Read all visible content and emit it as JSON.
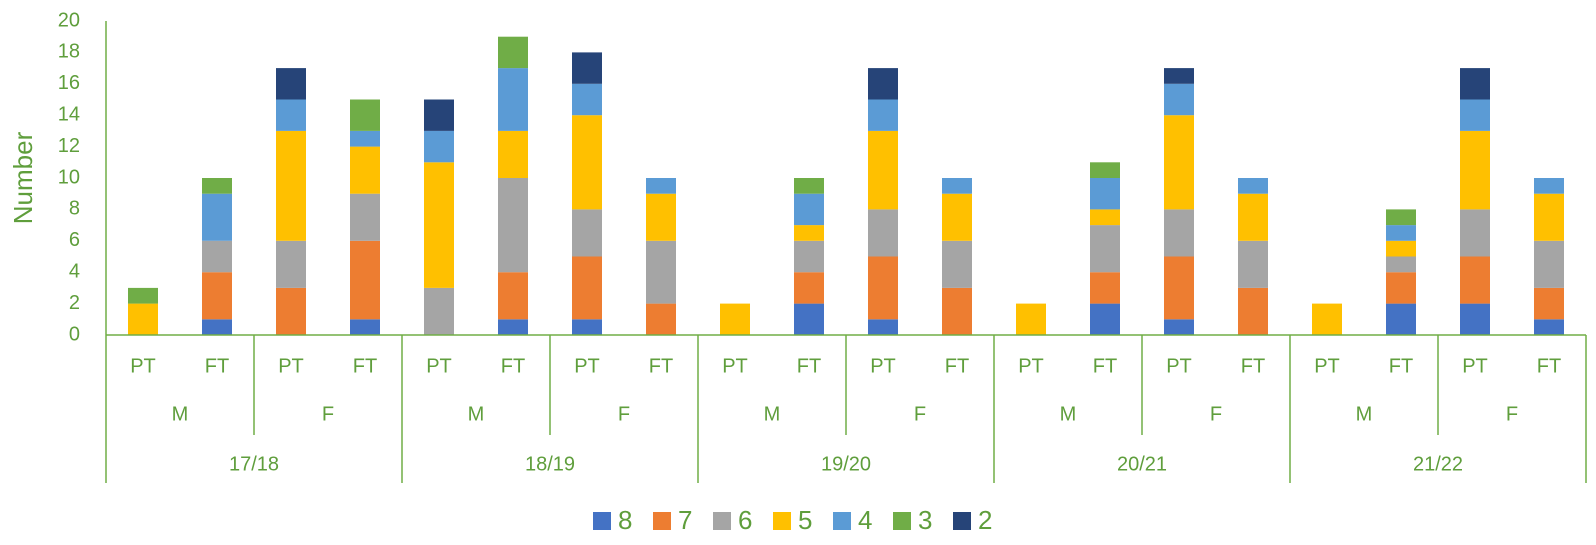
{
  "chart_data": {
    "type": "stacked_bar",
    "y_label": "Number",
    "categories": [
      "PT",
      "FT",
      "PT",
      "FT",
      "PT",
      "FT",
      "PT",
      "FT",
      "PT",
      "FT",
      "PT",
      "FT",
      "PT",
      "FT",
      "PT",
      "FT",
      "PT",
      "FT",
      "PT",
      "FT"
    ],
    "sex_labels": [
      "M",
      "F",
      "M",
      "F",
      "M",
      "F",
      "M",
      "F",
      "M",
      "F"
    ],
    "year_labels": [
      "17/18",
      "18/19",
      "19/20",
      "20/21",
      "21/22"
    ],
    "ylim": [
      0,
      20
    ],
    "yticks": [
      0,
      2,
      4,
      6,
      8,
      10,
      12,
      14,
      16,
      18,
      20
    ],
    "series": [
      {
        "name": "8",
        "color": "#4472c4",
        "values": [
          0,
          1,
          0,
          1,
          0,
          1,
          1,
          0,
          0,
          2,
          1,
          0,
          0,
          2,
          1,
          0,
          0,
          2,
          2,
          1
        ]
      },
      {
        "name": "7",
        "color": "#ed7d31",
        "values": [
          0,
          3,
          3,
          5,
          0,
          3,
          4,
          2,
          0,
          2,
          4,
          3,
          0,
          2,
          4,
          3,
          0,
          2,
          3,
          2
        ]
      },
      {
        "name": "6",
        "color": "#a5a5a5",
        "values": [
          0,
          2,
          3,
          3,
          3,
          6,
          3,
          4,
          0,
          2,
          3,
          3,
          0,
          3,
          3,
          3,
          0,
          1,
          3,
          3
        ]
      },
      {
        "name": "5",
        "color": "#ffc000",
        "values": [
          2,
          0,
          7,
          3,
          8,
          3,
          6,
          3,
          2,
          1,
          5,
          3,
          2,
          1,
          6,
          3,
          2,
          1,
          5,
          3
        ]
      },
      {
        "name": "4",
        "color": "#5b9bd5",
        "values": [
          0,
          3,
          2,
          1,
          2,
          4,
          2,
          1,
          0,
          2,
          2,
          1,
          0,
          2,
          2,
          1,
          0,
          1,
          2,
          1
        ]
      },
      {
        "name": "3",
        "color": "#70ad47",
        "values": [
          1,
          1,
          0,
          2,
          0,
          2,
          0,
          0,
          0,
          1,
          0,
          0,
          0,
          1,
          0,
          0,
          0,
          1,
          0,
          0
        ]
      },
      {
        "name": "2",
        "color": "#264478",
        "values": [
          0,
          0,
          2,
          0,
          2,
          0,
          2,
          0,
          0,
          0,
          2,
          0,
          0,
          0,
          1,
          0,
          0,
          0,
          2,
          0
        ]
      }
    ]
  }
}
